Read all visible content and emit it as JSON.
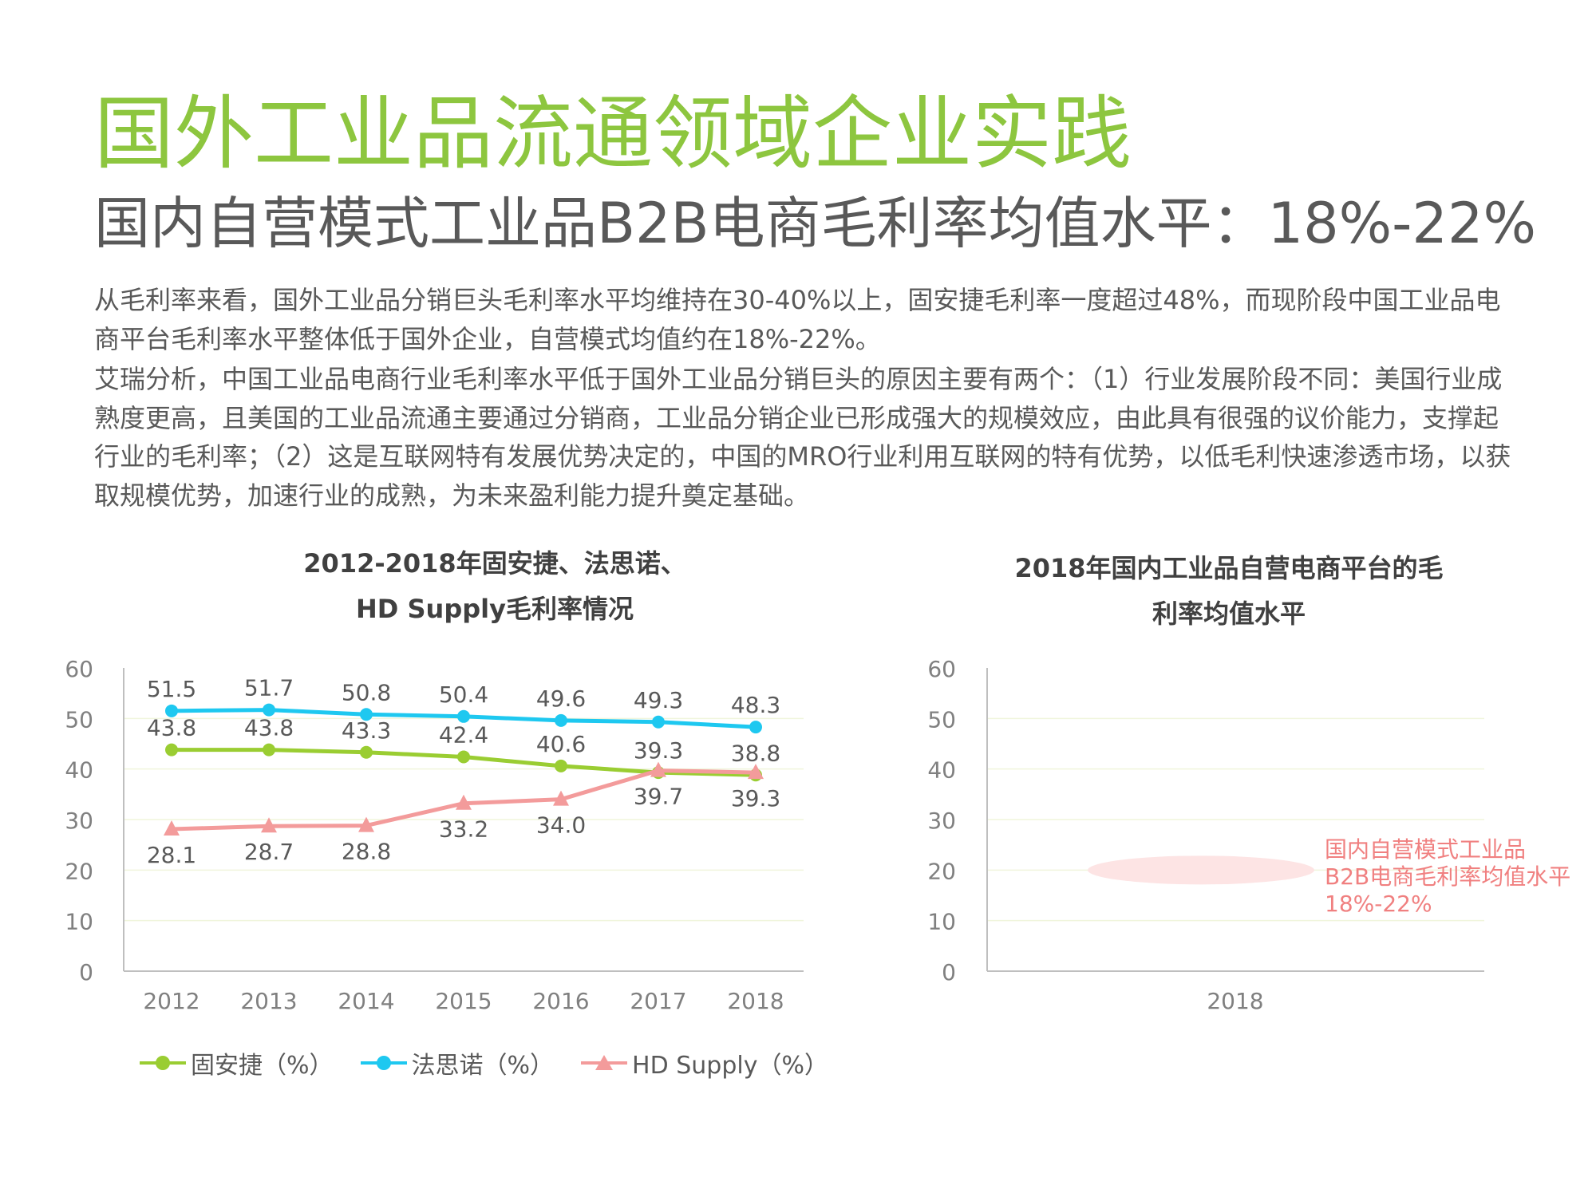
{
  "title": "国外工业品流通领域企业实践",
  "subtitle": "国内自营模式工业品B2B电商毛利率均值水平：18%-22%",
  "paragraph1": "从毛利率来看，国外工业品分销巨头毛利率水平均维持在30-40%以上，固安捷毛利率一度超过48%，而现阶段中国工业品电商平台毛利率水平整体低于国外企业，自营模式均值约在18%-22%。",
  "paragraph2": "艾瑞分析，中国工业品电商行业毛利率水平低于国外工业品分销巨头的原因主要有两个：（1）行业发展阶段不同：美国行业成熟度更高，且美国的工业品流通主要通过分销商，工业品分销企业已形成强大的规模效应，由此具有很强的议价能力，支撑起行业的毛利率；（2）这是互联网特有发展优势决定的，中国的MRO行业利用互联网的特有优势，以低毛利快速渗透市场，以获取规模优势，加速行业的成熟，为未来盈利能力提升奠定基础。",
  "chart_data": [
    {
      "type": "line",
      "title": "2012-2018年固安捷、法思诺、HD Supply毛利率情况",
      "title_lines": [
        "2012-2018年固安捷、法思诺、",
        "HD Supply毛利率情况"
      ],
      "categories": [
        "2012",
        "2013",
        "2014",
        "2015",
        "2016",
        "2017",
        "2018"
      ],
      "ylim": [
        0,
        60
      ],
      "yticks": [
        "0",
        "10",
        "20",
        "30",
        "40",
        "50",
        "60"
      ],
      "grid": true,
      "legend_position": "bottom",
      "series": [
        {
          "name": "固安捷（%）",
          "values": [
            43.8,
            43.8,
            43.3,
            42.4,
            40.6,
            39.3,
            38.8
          ],
          "color": "#9acd32",
          "marker": "circle",
          "label_pos": "above"
        },
        {
          "name": "法思诺（%）",
          "values": [
            51.5,
            51.7,
            50.8,
            50.4,
            49.6,
            49.3,
            48.3
          ],
          "color": "#1ec8f0",
          "marker": "circle",
          "label_pos": "above"
        },
        {
          "name": "HD Supply（%）",
          "values": [
            28.1,
            28.7,
            28.8,
            33.2,
            34.0,
            39.7,
            39.3
          ],
          "color": "#f39b9b",
          "marker": "triangle",
          "label_pos": "below"
        }
      ]
    },
    {
      "type": "bar",
      "title": "2018年国内工业品自营电商平台的毛利率均值水平",
      "title_lines": [
        "2018年国内工业品自营电商平台的毛",
        "利率均值水平"
      ],
      "categories": [
        "2018"
      ],
      "ylim": [
        0,
        60
      ],
      "yticks": [
        "0",
        "10",
        "20",
        "30",
        "40",
        "50",
        "60"
      ],
      "grid": true,
      "range_band": [
        18,
        22
      ],
      "band_color": "#fde4e4",
      "annotation": [
        "国内自营模式工业品",
        "B2B电商毛利率均值水平",
        "18%-22%"
      ]
    }
  ]
}
